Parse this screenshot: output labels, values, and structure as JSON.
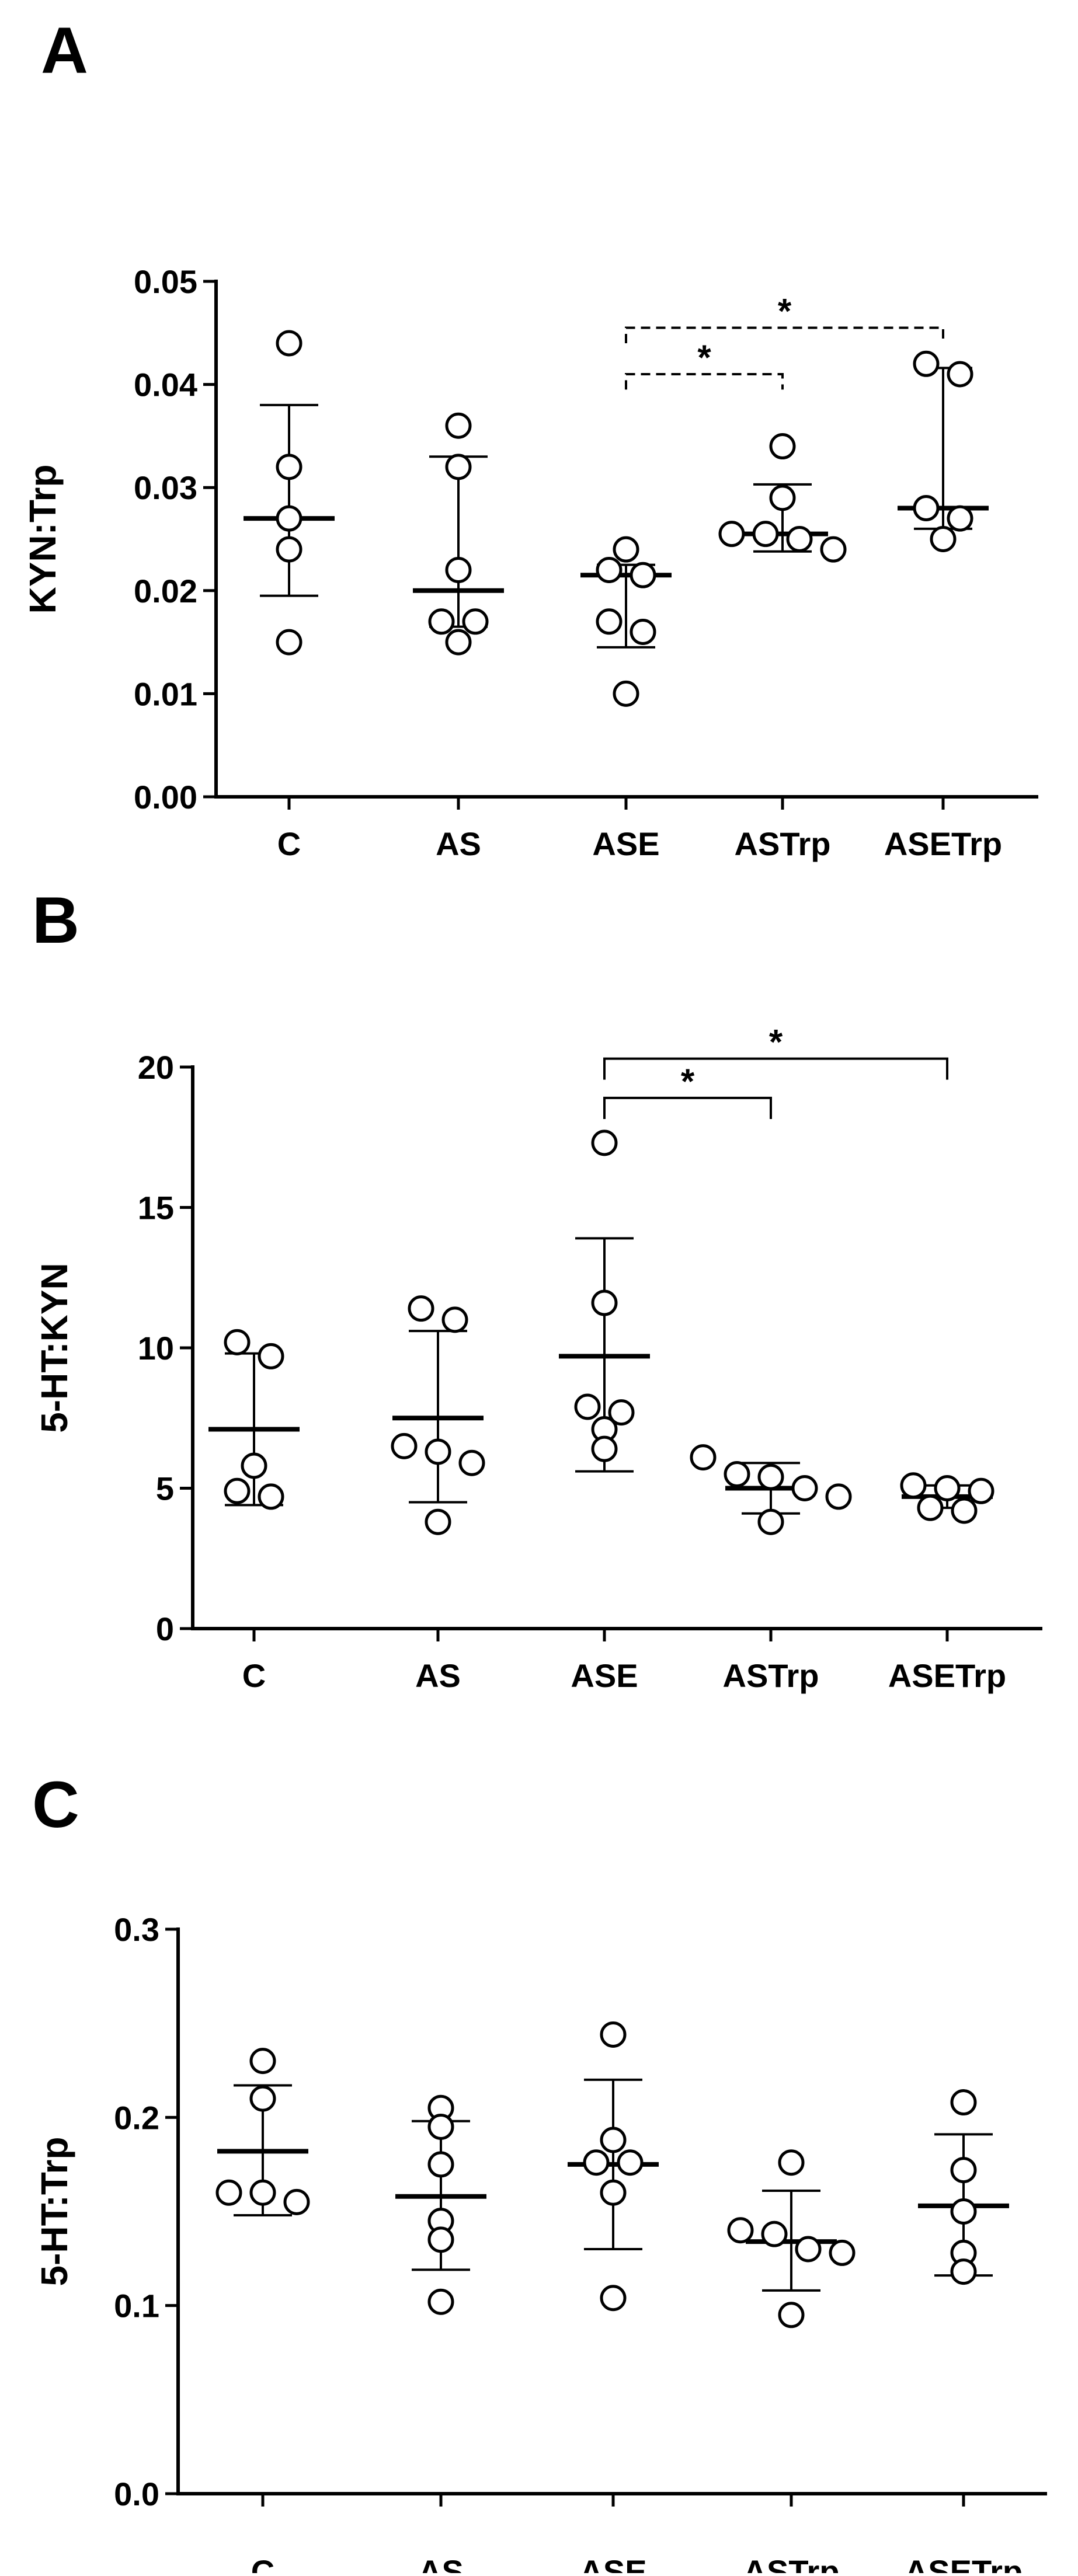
{
  "chart_data": [
    {
      "type": "scatter",
      "panel": "A",
      "ylabel": "KYN:Trp",
      "ylim": [
        0,
        0.05
      ],
      "yticks": [
        "0.00",
        "0.01",
        "0.02",
        "0.03",
        "0.04",
        "0.05"
      ],
      "categories": [
        "C",
        "AS",
        "ASE",
        "ASTrp",
        "ASETrp"
      ],
      "groups": [
        {
          "points": [
            0.044,
            0.032,
            0.027,
            0.024,
            0.015
          ],
          "mean": 0.027,
          "err_top": 0.038,
          "err_bottom": 0.0195
        },
        {
          "points": [
            0.036,
            0.032,
            0.022,
            0.017,
            0.017,
            0.015
          ],
          "mean": 0.02,
          "err_top": 0.033,
          "err_bottom": 0.0165
        },
        {
          "points": [
            0.024,
            0.022,
            0.0215,
            0.017,
            0.016,
            0.01
          ],
          "mean": 0.0215,
          "err_top": 0.0225,
          "err_bottom": 0.0145
        },
        {
          "points": [
            0.034,
            0.029,
            0.0255,
            0.025,
            0.0255,
            0.024
          ],
          "mean": 0.0255,
          "err_top": 0.0303,
          "err_bottom": 0.0238
        },
        {
          "points": [
            0.042,
            0.041,
            0.028,
            0.027,
            0.025
          ],
          "mean": 0.028,
          "err_top": 0.0416,
          "err_bottom": 0.026
        }
      ],
      "significance": [
        {
          "from": "ASE",
          "to": "ASTrp",
          "label": "*",
          "style": "dashed"
        },
        {
          "from": "ASE",
          "to": "ASETrp",
          "label": "*",
          "style": "dashed"
        }
      ]
    },
    {
      "type": "scatter",
      "panel": "B",
      "ylabel": "5-HT:KYN",
      "ylim": [
        0,
        20
      ],
      "yticks": [
        "0",
        "5",
        "10",
        "15",
        "20"
      ],
      "categories": [
        "C",
        "AS",
        "ASE",
        "ASTrp",
        "ASETrp"
      ],
      "groups": [
        {
          "points": [
            10.2,
            9.7,
            5.8,
            4.9,
            4.7
          ],
          "mean": 7.1,
          "err_top": 9.8,
          "err_bottom": 4.4
        },
        {
          "points": [
            11.4,
            11.0,
            6.5,
            6.3,
            5.9,
            3.8
          ],
          "mean": 7.5,
          "err_top": 10.6,
          "err_bottom": 4.5
        },
        {
          "points": [
            17.3,
            11.6,
            7.9,
            7.7,
            7.1,
            6.4
          ],
          "mean": 9.7,
          "err_top": 13.9,
          "err_bottom": 5.6
        },
        {
          "points": [
            6.1,
            5.5,
            5.4,
            5.0,
            4.7,
            3.8
          ],
          "mean": 5.0,
          "err_top": 5.9,
          "err_bottom": 4.1
        },
        {
          "points": [
            5.1,
            5.0,
            4.9,
            4.3,
            4.2
          ],
          "mean": 4.7,
          "err_top": 5.1,
          "err_bottom": 4.3
        }
      ],
      "significance": [
        {
          "from": "ASE",
          "to": "ASTrp",
          "label": "*",
          "style": "solid"
        },
        {
          "from": "ASE",
          "to": "ASETrp",
          "label": "*",
          "style": "solid"
        }
      ]
    },
    {
      "type": "scatter",
      "panel": "C",
      "ylabel": "5-HT:Trp",
      "ylim": [
        0,
        0.3
      ],
      "yticks": [
        "0.0",
        "0.1",
        "0.2",
        "0.3"
      ],
      "categories": [
        "C",
        "AS",
        "ASE",
        "ASTrp",
        "ASETrp"
      ],
      "groups": [
        {
          "points": [
            0.23,
            0.21,
            0.16,
            0.16,
            0.155
          ],
          "mean": 0.182,
          "err_top": 0.217,
          "err_bottom": 0.148
        },
        {
          "points": [
            0.205,
            0.195,
            0.175,
            0.145,
            0.135,
            0.102
          ],
          "mean": 0.158,
          "err_top": 0.198,
          "err_bottom": 0.119
        },
        {
          "points": [
            0.244,
            0.188,
            0.176,
            0.176,
            0.16,
            0.104
          ],
          "mean": 0.175,
          "err_top": 0.22,
          "err_bottom": 0.13
        },
        {
          "points": [
            0.176,
            0.14,
            0.138,
            0.13,
            0.128,
            0.095
          ],
          "mean": 0.134,
          "err_top": 0.161,
          "err_bottom": 0.108
        },
        {
          "points": [
            0.208,
            0.172,
            0.15,
            0.128,
            0.118
          ],
          "mean": 0.153,
          "err_top": 0.191,
          "err_bottom": 0.116
        }
      ],
      "significance": []
    }
  ]
}
